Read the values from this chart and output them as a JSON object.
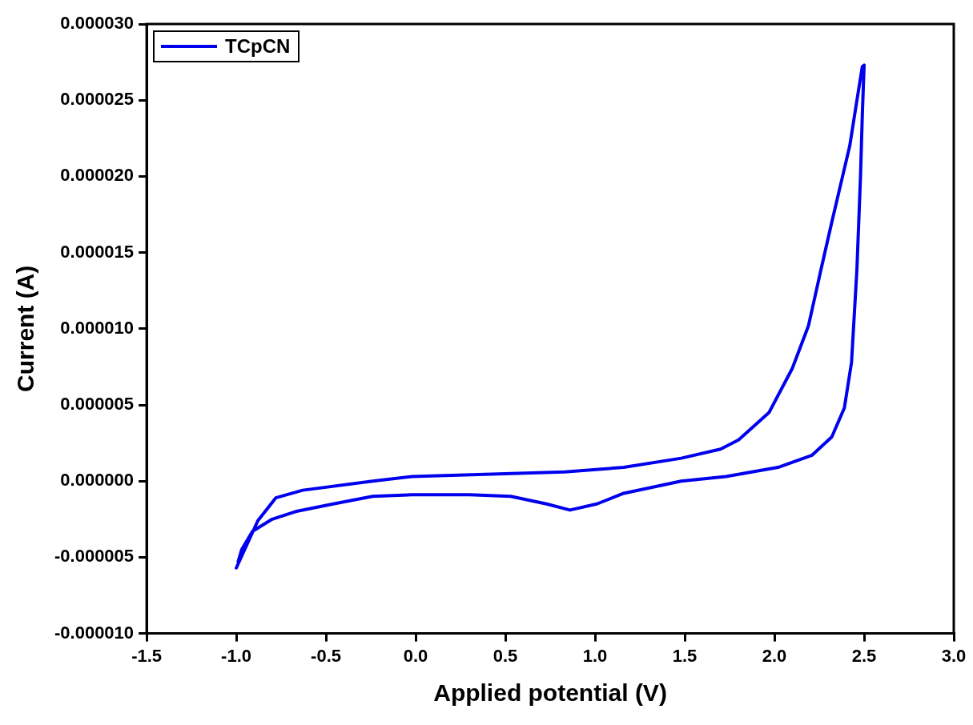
{
  "chart_data": {
    "type": "line",
    "xlabel": "Applied potential (V)",
    "ylabel": "Current (A)",
    "xlim": [
      -1.5,
      3.0
    ],
    "ylim": [
      -1e-05,
      3e-05
    ],
    "xticks": [
      {
        "value": -1.5,
        "label": "-1.5"
      },
      {
        "value": -1,
        "label": "-1.0"
      },
      {
        "value": -0.5,
        "label": "-0.5"
      },
      {
        "value": 0,
        "label": "0.0"
      },
      {
        "value": 0.5,
        "label": "0.5"
      },
      {
        "value": 1,
        "label": "1.0"
      },
      {
        "value": 1.5,
        "label": "1.5"
      },
      {
        "value": 2,
        "label": "2.0"
      },
      {
        "value": 2.5,
        "label": "2.5"
      },
      {
        "value": 3,
        "label": "3.0"
      }
    ],
    "yticks": [
      {
        "value": -1e-05,
        "label": "-0.000010"
      },
      {
        "value": -5e-06,
        "label": "-0.000005"
      },
      {
        "value": 0,
        "label": "0.000000"
      },
      {
        "value": 5e-06,
        "label": "0.000005"
      },
      {
        "value": 1e-05,
        "label": "0.000010"
      },
      {
        "value": 1.5e-05,
        "label": "0.000015"
      },
      {
        "value": 2e-05,
        "label": "0.000020"
      },
      {
        "value": 2.5e-05,
        "label": "0.000025"
      },
      {
        "value": 3e-05,
        "label": "0.000030"
      }
    ],
    "grid": false,
    "legend": "top left",
    "marker": "none",
    "line_style": "solid",
    "series": [
      {
        "name": "TCpCN",
        "color": "#0000ee",
        "x": [
          -1.0,
          -0.88,
          -0.78,
          -0.63,
          -0.24,
          -0.02,
          0.83,
          1.16,
          1.48,
          1.7,
          1.8,
          1.97,
          2.1,
          2.19,
          2.26,
          2.32,
          2.38,
          2.42,
          2.46,
          2.49,
          2.5,
          2.49,
          2.48,
          2.46,
          2.43,
          2.39,
          2.32,
          2.21,
          2.02,
          1.73,
          1.48,
          1.16,
          1.01,
          0.86,
          0.73,
          0.53,
          0.3,
          -0.02,
          -0.24,
          -0.46,
          -0.67,
          -0.8,
          -0.91,
          -0.97,
          -0.99
        ],
        "values": [
          -5.7e-06,
          -2.6e-06,
          -1.1e-06,
          -6e-07,
          0.0,
          3e-07,
          6e-07,
          9e-07,
          1.5e-06,
          2.1e-06,
          2.7e-06,
          4.5e-06,
          7.4e-06,
          1.02e-05,
          1.39e-05,
          1.7e-05,
          2e-05,
          2.2e-05,
          2.5e-05,
          2.72e-05,
          2.73e-05,
          2.4e-05,
          2e-05,
          1.39e-05,
          7.8e-06,
          4.8e-06,
          2.9e-06,
          1.7e-06,
          9e-07,
          3e-07,
          0.0,
          -8e-07,
          -1.5e-06,
          -1.9e-06,
          -1.5e-06,
          -1e-06,
          -9e-07,
          -9e-07,
          -1e-06,
          -1.5e-06,
          -2e-06,
          -2.5e-06,
          -3.3e-06,
          -4.5e-06,
          -5.3e-06
        ]
      }
    ]
  }
}
